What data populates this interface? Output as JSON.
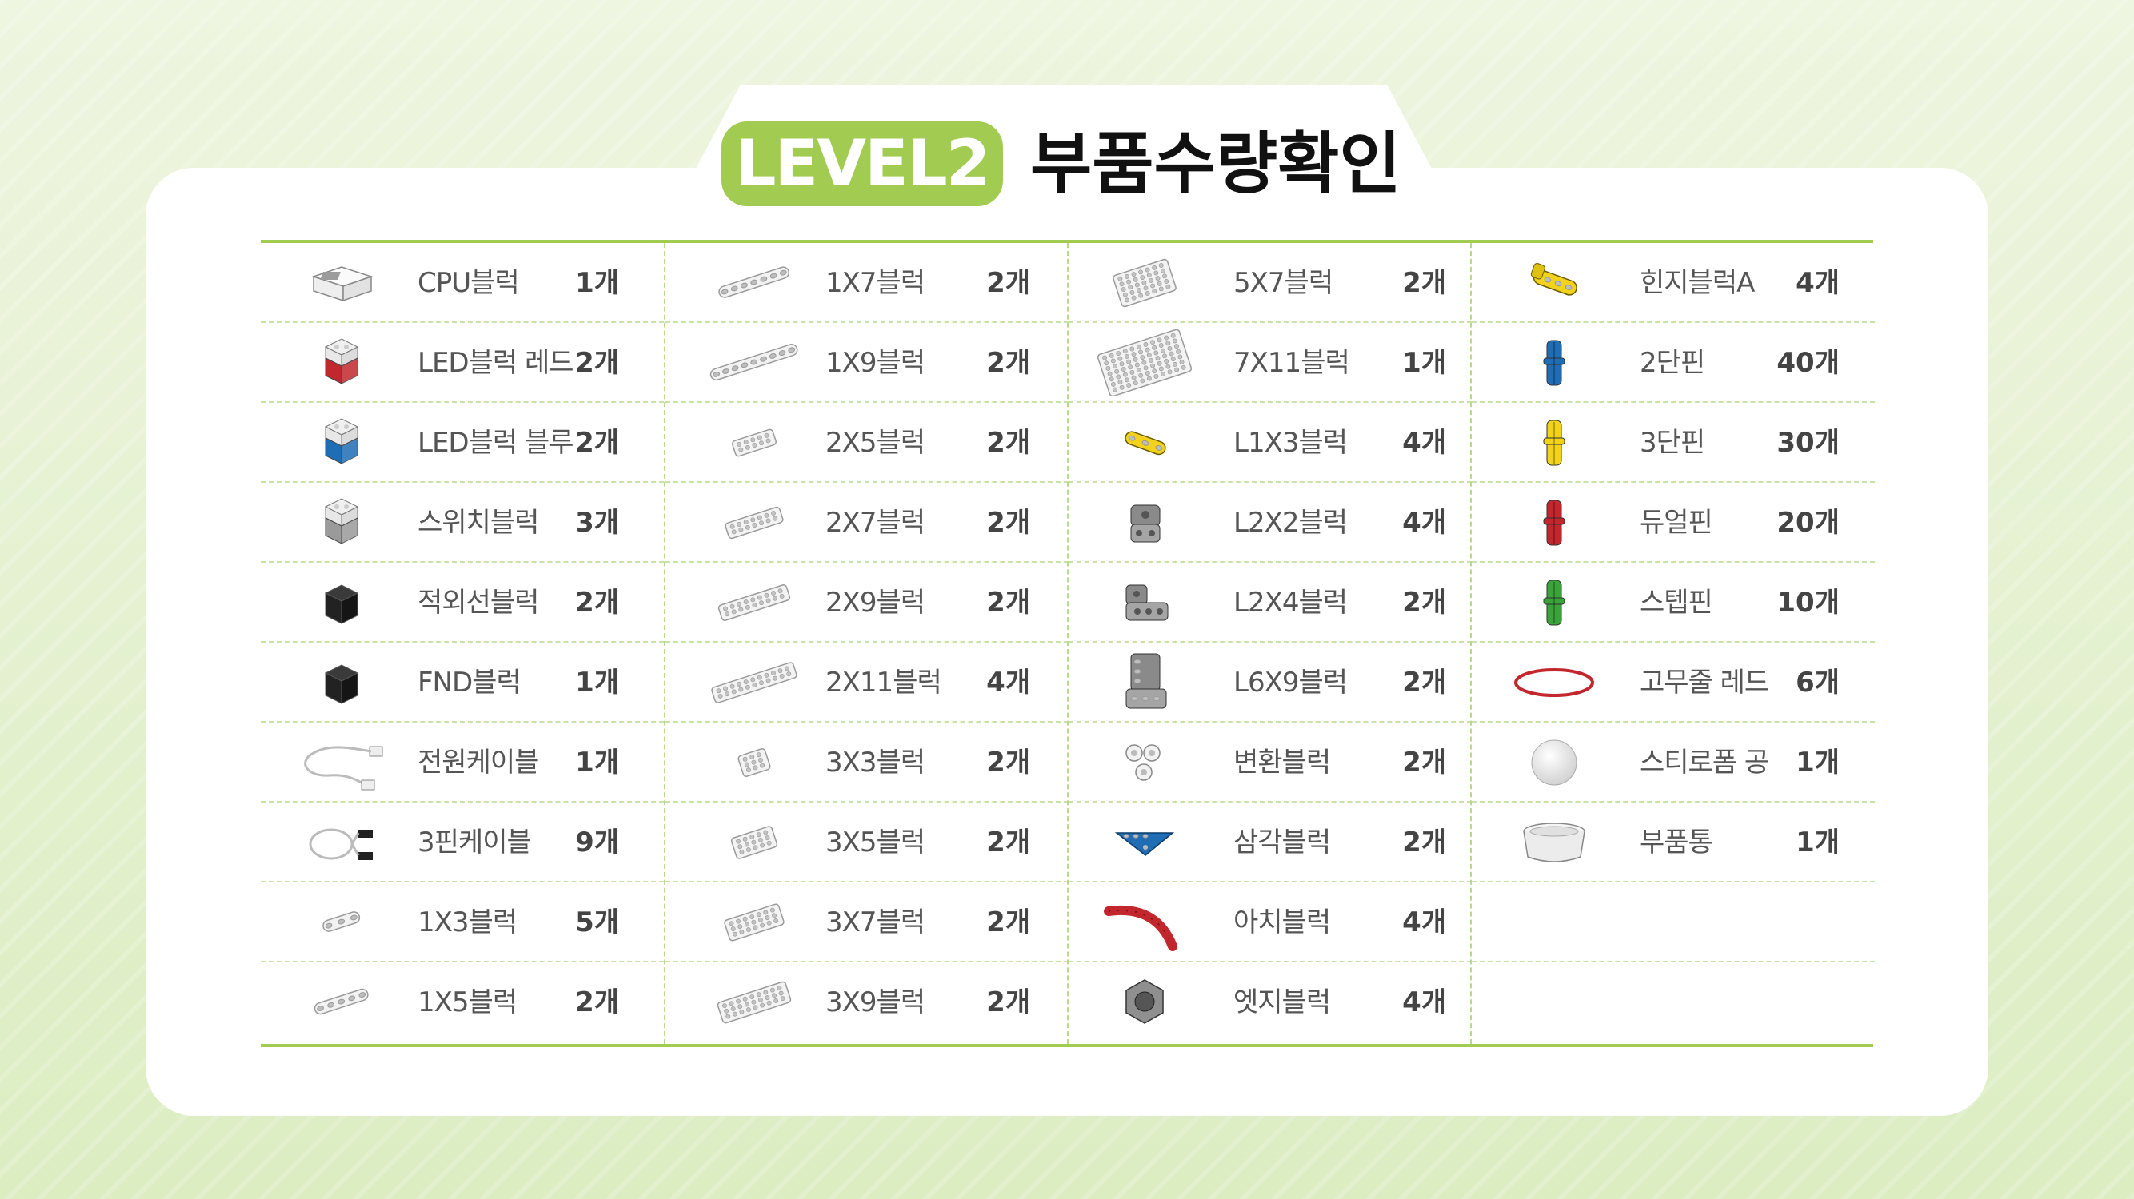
{
  "header": {
    "badge": "LEVEL2",
    "title": "부품수량확인"
  },
  "columns": [
    {
      "items": [
        {
          "icon": "cpu-block-icon",
          "name": "CPU블럭",
          "qty": "1개"
        },
        {
          "icon": "red-led-block-icon",
          "name": "LED블럭 레드",
          "qty": "2개"
        },
        {
          "icon": "blue-led-block-icon",
          "name": "LED블럭 블루",
          "qty": "2개"
        },
        {
          "icon": "switch-block-icon",
          "name": "스위치블럭",
          "qty": "3개"
        },
        {
          "icon": "infrared-block-icon",
          "name": "적외선블럭",
          "qty": "2개"
        },
        {
          "icon": "fnd-block-icon",
          "name": "FND블럭",
          "qty": "1개"
        },
        {
          "icon": "power-cable-icon",
          "name": "전원케이블",
          "qty": "1개"
        },
        {
          "icon": "three-pin-cable-icon",
          "name": "3핀케이블",
          "qty": "9개"
        },
        {
          "icon": "beam-1x3-icon",
          "name": "1X3블럭",
          "qty": "5개"
        },
        {
          "icon": "beam-1x5-icon",
          "name": "1X5블럭",
          "qty": "2개"
        }
      ]
    },
    {
      "items": [
        {
          "icon": "beam-1x7-icon",
          "name": "1X7블럭",
          "qty": "2개"
        },
        {
          "icon": "beam-1x9-icon",
          "name": "1X9블럭",
          "qty": "2개"
        },
        {
          "icon": "plate-2x5-icon",
          "name": "2X5블럭",
          "qty": "2개"
        },
        {
          "icon": "plate-2x7-icon",
          "name": "2X7블럭",
          "qty": "2개"
        },
        {
          "icon": "plate-2x9-icon",
          "name": "2X9블럭",
          "qty": "2개"
        },
        {
          "icon": "plate-2x11-icon",
          "name": "2X11블럭",
          "qty": "4개"
        },
        {
          "icon": "plate-3x3-icon",
          "name": "3X3블럭",
          "qty": "2개"
        },
        {
          "icon": "plate-3x5-icon",
          "name": "3X5블럭",
          "qty": "2개"
        },
        {
          "icon": "plate-3x7-icon",
          "name": "3X7블럭",
          "qty": "2개"
        },
        {
          "icon": "plate-3x9-icon",
          "name": "3X9블럭",
          "qty": "2개"
        }
      ]
    },
    {
      "items": [
        {
          "icon": "plate-5x7-icon",
          "name": "5X7블럭",
          "qty": "2개"
        },
        {
          "icon": "plate-7x11-icon",
          "name": "7X11블럭",
          "qty": "1개"
        },
        {
          "icon": "yellow-l1x3-icon",
          "name": "L1X3블럭",
          "qty": "4개"
        },
        {
          "icon": "gray-l2x2-icon",
          "name": "L2X2블럭",
          "qty": "4개"
        },
        {
          "icon": "gray-l2x4-icon",
          "name": "L2X4블럭",
          "qty": "2개"
        },
        {
          "icon": "gray-l6x9-icon",
          "name": "L6X9블럭",
          "qty": "2개"
        },
        {
          "icon": "converter-block-icon",
          "name": "변환블럭",
          "qty": "2개"
        },
        {
          "icon": "blue-triangle-block-icon",
          "name": "삼각블럭",
          "qty": "2개"
        },
        {
          "icon": "red-arch-block-icon",
          "name": "아치블럭",
          "qty": "4개"
        },
        {
          "icon": "gray-hex-block-icon",
          "name": "엣지블럭",
          "qty": "4개"
        }
      ]
    },
    {
      "items": [
        {
          "icon": "yellow-hinge-block-icon",
          "name": "힌지블럭A",
          "qty": "4개"
        },
        {
          "icon": "blue-2-stage-pin-icon",
          "name": "2단핀",
          "qty": "40개"
        },
        {
          "icon": "yellow-3-stage-pin-icon",
          "name": "3단핀",
          "qty": "30개"
        },
        {
          "icon": "red-dual-pin-icon",
          "name": "듀얼핀",
          "qty": "20개"
        },
        {
          "icon": "green-step-pin-icon",
          "name": "스텝핀",
          "qty": "10개"
        },
        {
          "icon": "red-rubber-band-icon",
          "name": "고무줄 레드",
          "qty": "6개"
        },
        {
          "icon": "styrofoam-ball-icon",
          "name": "스티로폼 공",
          "qty": "1개"
        },
        {
          "icon": "parts-container-icon",
          "name": "부품통",
          "qty": "1개"
        }
      ]
    }
  ],
  "colors": {
    "accent": "#a2cb52",
    "red": "#c1272d",
    "blue": "#1f6db5",
    "yellow": "#f2d21a",
    "green": "#3aa43a",
    "gray": "#8a8a8a"
  }
}
